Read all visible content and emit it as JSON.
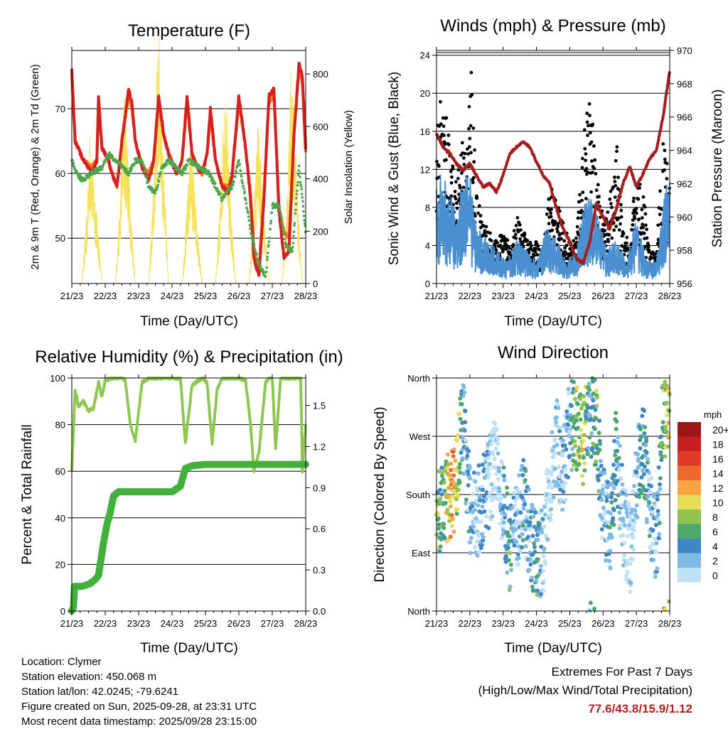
{
  "colors": {
    "t2m": "#d62020",
    "t9m": "#f07828",
    "td": "#4ca64c",
    "solar": "#f5e15a",
    "wind": "#4a90d0",
    "gust": "#000000",
    "pressure": "#a51e1e",
    "rh": "#8ec853",
    "precip": "#44b03c",
    "extremes": "#b22222"
  },
  "chart_data": [
    {
      "type": "line",
      "title": "Temperature (F)",
      "xlabel": "Time (Day/UTC)",
      "ylabel": "2m & 9m T (Red, Orange) & 2m Td (Green)",
      "ylabel_right": "Solar Insolation (Yellow)",
      "xlim": [
        0,
        7
      ],
      "ylim": [
        43,
        79
      ],
      "yticks": [
        50,
        60,
        70
      ],
      "ylim_right": [
        0,
        890
      ],
      "yticks_right": [
        0,
        200,
        400,
        600,
        800
      ],
      "x_tick_labels": [
        "21/23",
        "22/23",
        "23/23",
        "24/23",
        "25/23",
        "26/23",
        "27/23",
        "28/23"
      ],
      "grid": true,
      "series": [
        {
          "name": "2m T",
          "color": "#d62020",
          "x": [
            0,
            0.1,
            0.35,
            0.6,
            0.75,
            0.8,
            0.9,
            1.1,
            1.2,
            1.35,
            1.5,
            1.7,
            1.8,
            1.9,
            2.1,
            2.3,
            2.45,
            2.6,
            2.75,
            2.9,
            3.05,
            3.15,
            3.3,
            3.45,
            3.6,
            3.75,
            3.9,
            4.05,
            4.15,
            4.3,
            4.5,
            4.7,
            4.8,
            5.0,
            5.2,
            5.35,
            5.45,
            5.6,
            5.75,
            5.9,
            6.05,
            6.2,
            6.35,
            6.5,
            6.65,
            6.8,
            6.9,
            7.0
          ],
          "values": [
            76,
            65,
            62,
            60,
            62,
            72,
            64,
            62,
            60,
            58,
            65,
            73,
            71,
            65,
            61,
            59,
            62,
            72,
            66,
            63,
            61,
            60,
            62,
            72,
            63,
            61,
            60,
            63,
            70,
            62,
            58,
            57,
            60,
            72,
            64,
            56,
            47,
            44,
            56,
            72,
            73,
            54,
            47,
            48,
            66,
            77,
            75,
            64
          ]
        },
        {
          "name": "9m T",
          "color": "#f07828",
          "x": [
            0,
            0.1,
            0.35,
            0.6,
            0.75,
            0.8,
            0.9,
            1.1,
            1.2,
            1.35,
            1.5,
            1.7,
            1.8,
            1.9,
            2.1,
            2.3,
            2.45,
            2.6,
            2.75,
            2.9,
            3.05,
            3.15,
            3.3,
            3.45,
            3.6,
            3.75,
            3.9,
            4.05,
            4.15,
            4.3,
            4.5,
            4.7,
            4.8,
            5.0,
            5.2,
            5.35,
            5.45,
            5.6,
            5.75,
            5.9,
            6.05,
            6.2,
            6.35,
            6.5,
            6.65,
            6.8,
            6.9,
            7.0
          ],
          "values": [
            75,
            65,
            62,
            61,
            62,
            71,
            64,
            62,
            60,
            58,
            65,
            72,
            70,
            65,
            61,
            60,
            62,
            71,
            66,
            63,
            61,
            60,
            62,
            71,
            63,
            61,
            60,
            63,
            69,
            62,
            58,
            58,
            60,
            71,
            64,
            57,
            48,
            45,
            57,
            71,
            72,
            55,
            51,
            50,
            66,
            76,
            74,
            63
          ]
        },
        {
          "name": "2m Td",
          "color": "#4ca64c",
          "x": [
            0,
            0.15,
            0.3,
            0.6,
            0.9,
            1.1,
            1.3,
            1.5,
            1.7,
            1.9,
            2.1,
            2.3,
            2.5,
            2.7,
            2.9,
            3.1,
            3.3,
            3.5,
            3.8,
            4.1,
            4.3,
            4.5,
            4.8,
            5.0,
            5.2,
            5.4,
            5.6,
            5.8,
            6.0,
            6.2,
            6.4,
            6.6,
            6.8,
            7.0
          ],
          "values": [
            62,
            60,
            59,
            60,
            61,
            63,
            62,
            61,
            60,
            62,
            62,
            58,
            57,
            61,
            62,
            61,
            60,
            62,
            61,
            60,
            58,
            56,
            58,
            62,
            56,
            50,
            46,
            44,
            55,
            55,
            49,
            48,
            61,
            51
          ]
        },
        {
          "name": "Solar Insolation",
          "color": "#f5e15a",
          "axis": "right",
          "x": [
            0,
            0.3,
            0.45,
            0.55,
            0.65,
            0.75,
            0.9,
            1.3,
            1.45,
            1.55,
            1.65,
            1.75,
            1.9,
            2.3,
            2.45,
            2.55,
            2.62,
            2.75,
            2.9,
            3.3,
            3.45,
            3.55,
            3.65,
            3.75,
            3.9,
            4.3,
            4.45,
            4.55,
            4.65,
            4.75,
            4.9,
            5.3,
            5.45,
            5.55,
            5.65,
            5.75,
            5.9,
            6.3,
            6.45,
            6.55,
            6.65,
            6.75,
            6.9,
            7.0
          ],
          "values": [
            0,
            0,
            250,
            560,
            400,
            250,
            0,
            0,
            300,
            700,
            560,
            300,
            0,
            0,
            350,
            800,
            880,
            400,
            0,
            0,
            280,
            520,
            380,
            200,
            0,
            0,
            300,
            700,
            600,
            300,
            0,
            0,
            260,
            560,
            480,
            260,
            0,
            0,
            320,
            760,
            640,
            300,
            0,
            0
          ]
        }
      ]
    },
    {
      "type": "scatter",
      "title": "Winds (mph) & Pressure (mb)",
      "xlabel": "Time (Day/UTC)",
      "ylabel": "Sonic Wind & Gust (Blue, Black)",
      "ylabel_right": "Station Pressure (Maroon)",
      "xlim": [
        0,
        7
      ],
      "ylim": [
        0,
        24.5
      ],
      "yticks": [
        0,
        4,
        8,
        12,
        16,
        20,
        24
      ],
      "ylim_right": [
        956,
        970
      ],
      "yticks_right": [
        956,
        958,
        960,
        962,
        964,
        966,
        968,
        970
      ],
      "x_tick_labels": [
        "21/23",
        "22/23",
        "23/23",
        "24/23",
        "25/23",
        "26/23",
        "27/23",
        "28/23"
      ],
      "grid": true,
      "series": [
        {
          "name": "Sonic Wind",
          "color": "#4a90d0",
          "x": [
            0,
            0.3,
            0.6,
            0.9,
            1.2,
            1.5,
            1.8,
            2.1,
            2.4,
            2.7,
            3.0,
            3.3,
            3.6,
            3.9,
            4.2,
            4.5,
            4.8,
            5.1,
            5.4,
            5.7,
            6.0,
            6.3,
            6.6,
            6.9
          ],
          "values": [
            10,
            9,
            6,
            12,
            5,
            4,
            3,
            2,
            4,
            3,
            2,
            5,
            4,
            2,
            3,
            8,
            7,
            3,
            4,
            2,
            6,
            2,
            2,
            9
          ]
        },
        {
          "name": "Gust",
          "color": "#000000",
          "x": [
            0,
            0.15,
            0.3,
            0.45,
            0.6,
            0.75,
            0.9,
            1.05,
            1.2,
            1.4,
            1.6,
            1.8,
            2.0,
            2.2,
            2.4,
            2.6,
            2.8,
            3.0,
            3.2,
            3.4,
            3.6,
            3.8,
            4.0,
            4.2,
            4.4,
            4.6,
            4.8,
            5.0,
            5.2,
            5.4,
            5.6,
            5.8,
            6.0,
            6.2,
            6.4,
            6.6,
            6.8,
            6.95
          ],
          "values": [
            14,
            20,
            16,
            12,
            10,
            14,
            12,
            22,
            9,
            6,
            5,
            4,
            5,
            4,
            7,
            5,
            4,
            4,
            3,
            10,
            8,
            6,
            4,
            5,
            14,
            18,
            12,
            6,
            8,
            14,
            5,
            4,
            11,
            9,
            3,
            3,
            14,
            12
          ]
        },
        {
          "name": "Station Pressure",
          "color": "#a51e1e",
          "axis": "right",
          "x": [
            0,
            0.2,
            0.4,
            0.6,
            0.8,
            1.0,
            1.2,
            1.4,
            1.6,
            1.8,
            2.0,
            2.2,
            2.4,
            2.6,
            2.8,
            3.0,
            3.2,
            3.4,
            3.6,
            3.8,
            4.0,
            4.2,
            4.4,
            4.6,
            4.8,
            5.0,
            5.2,
            5.4,
            5.6,
            5.8,
            6.0,
            6.2,
            6.4,
            6.6,
            6.8,
            7.0
          ],
          "values": [
            965,
            964.2,
            963.8,
            963.2,
            962.8,
            963.2,
            962.5,
            961.8,
            962,
            961.5,
            962.5,
            963.8,
            964.2,
            964.5,
            964.2,
            963.3,
            962.5,
            962,
            960.5,
            959.3,
            958.5,
            957.5,
            957.2,
            958.5,
            960.8,
            960,
            959.3,
            960.5,
            962,
            963,
            961.8,
            962.6,
            963.5,
            964,
            966,
            968.8
          ]
        }
      ]
    },
    {
      "type": "line",
      "title": "Relative Humidity (%) & Precipitation (in)",
      "xlabel": "Time (Day/UTC)",
      "ylabel": "Percent & Total Rainfall",
      "xlim": [
        0,
        7
      ],
      "ylim": [
        0,
        100
      ],
      "yticks": [
        0,
        20,
        40,
        60,
        80,
        100
      ],
      "ylim_right": [
        0,
        1.7
      ],
      "yticks_right": [
        "0.0",
        "0.3",
        "0.6",
        "0.9",
        "1.2",
        "1.5"
      ],
      "x_tick_labels": [
        "21/23",
        "22/23",
        "23/23",
        "24/23",
        "25/23",
        "26/23",
        "27/23",
        "28/23"
      ],
      "grid": true,
      "series": [
        {
          "name": "Relative Humidity",
          "color": "#8ec853",
          "x": [
            0,
            0.1,
            0.2,
            0.35,
            0.5,
            0.65,
            0.8,
            0.9,
            1.0,
            1.2,
            1.35,
            1.5,
            1.6,
            1.75,
            1.9,
            2.1,
            2.3,
            2.4,
            2.6,
            2.9,
            3.1,
            3.25,
            3.4,
            3.6,
            3.9,
            4.05,
            4.2,
            4.35,
            4.5,
            4.7,
            5.0,
            5.2,
            5.35,
            5.45,
            5.6,
            5.8,
            5.9,
            6.0,
            6.1,
            6.25,
            6.4,
            6.55,
            6.7,
            6.85,
            6.9,
            7.0
          ],
          "values": [
            60,
            95,
            88,
            90,
            86,
            87,
            98,
            92,
            99,
            100,
            100,
            100,
            99,
            80,
            73,
            98,
            100,
            100,
            100,
            100,
            100,
            100,
            72,
            97,
            100,
            98,
            72,
            95,
            100,
            100,
            100,
            99,
            80,
            60,
            68,
            98,
            100,
            100,
            70,
            100,
            100,
            100,
            100,
            100,
            60,
            80
          ]
        },
        {
          "name": "Total Precipitation",
          "color": "#44b03c",
          "axis": "right",
          "x": [
            0,
            0.05,
            0.08,
            0.3,
            0.55,
            0.7,
            0.8,
            0.95,
            1.05,
            1.15,
            1.25,
            1.4,
            2.0,
            3.0,
            3.25,
            3.4,
            3.6,
            4.0,
            5.0,
            6.0,
            7.0
          ],
          "values": [
            0,
            0.03,
            0.18,
            0.18,
            0.2,
            0.23,
            0.26,
            0.5,
            0.63,
            0.72,
            0.84,
            0.87,
            0.87,
            0.87,
            0.91,
            1.04,
            1.06,
            1.07,
            1.07,
            1.07,
            1.07
          ]
        }
      ]
    },
    {
      "type": "scatter",
      "title": "Wind Direction",
      "xlabel": "Time (Day/UTC)",
      "ylabel": "Direction (Colored By Speed)",
      "xlim": [
        0,
        7
      ],
      "ylim": [
        0,
        360
      ],
      "ytick_values": [
        0,
        90,
        180,
        270,
        360
      ],
      "yticks": [
        "North",
        "East",
        "South",
        "West",
        "North"
      ],
      "x_tick_labels": [
        "21/23",
        "22/23",
        "23/23",
        "24/23",
        "25/23",
        "26/23",
        "27/23",
        "28/23"
      ],
      "grid": true,
      "legend": {
        "title": "mph",
        "position": "right",
        "labels": [
          "20+",
          "18",
          "16",
          "14",
          "12",
          "10",
          "8",
          "6",
          "4",
          "2",
          "0"
        ],
        "colors": [
          "#9b1717",
          "#c42020",
          "#e03a28",
          "#f0692c",
          "#f7a445",
          "#e6dc58",
          "#92c350",
          "#4ca96a",
          "#3f86c4",
          "#7fb9e6",
          "#bfe1f6"
        ]
      },
      "series": [
        {
          "name": "Direction",
          "x": [
            0,
            0.1,
            0.2,
            0.3,
            0.4,
            0.5,
            0.6,
            0.7,
            0.8,
            0.9,
            1.0,
            1.2,
            1.4,
            1.6,
            1.8,
            2.0,
            2.2,
            2.4,
            2.6,
            2.8,
            3.0,
            3.2,
            3.4,
            3.6,
            3.8,
            4.0,
            4.2,
            4.4,
            4.6,
            4.8,
            5.0,
            5.2,
            5.4,
            5.6,
            5.8,
            6.0,
            6.2,
            6.4,
            6.6,
            6.8,
            6.95
          ],
          "values": [
            180,
            150,
            165,
            170,
            175,
            190,
            200,
            270,
            300,
            220,
            160,
            150,
            170,
            200,
            240,
            160,
            90,
            130,
            170,
            120,
            80,
            90,
            200,
            260,
            210,
            290,
            280,
            260,
            310,
            290,
            160,
            120,
            250,
            140,
            90,
            200,
            260,
            150,
            100,
            300,
            310
          ],
          "speeds": [
            8,
            8,
            6,
            10,
            12,
            14,
            10,
            8,
            4,
            4,
            4,
            2,
            4,
            2,
            0,
            4,
            6,
            2,
            4,
            4,
            6,
            2,
            0,
            2,
            2,
            4,
            8,
            10,
            4,
            8,
            2,
            4,
            6,
            2,
            0,
            4,
            6,
            4,
            2,
            8,
            10
          ]
        }
      ]
    }
  ],
  "info": {
    "location": "Location: Clymer",
    "elevation": "Station elevation: 450.068 m",
    "latlon": "Station lat/lon: 42.0245; -79.6241",
    "created": "Figure created on Sun, 2025-09-28, at 23:31 UTC",
    "timestamp": "Most recent data timestamp: 2025/09/28 23:15:00"
  },
  "extremes": {
    "line1": "Extremes For Past 7 Days",
    "line2": "(High/Low/Max Wind/Total Precipitation)",
    "values": "77.6/43.8/15.9/1.12"
  }
}
